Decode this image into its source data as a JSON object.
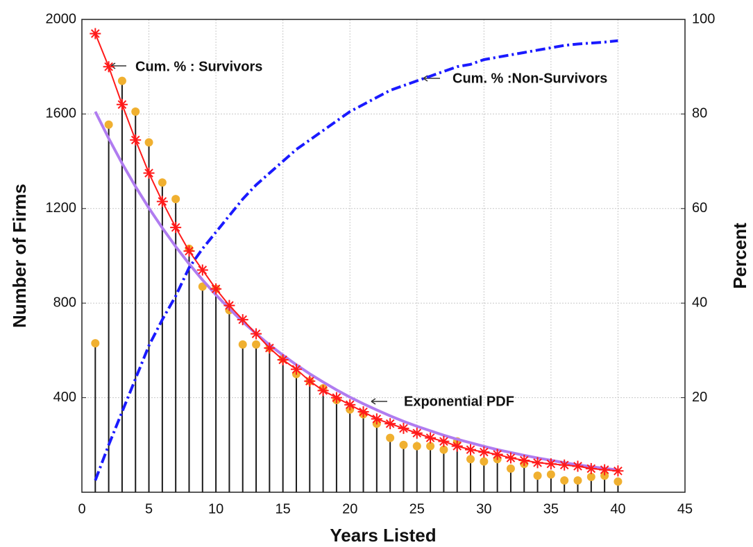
{
  "chart_data": {
    "type": "combo",
    "x": [
      1,
      2,
      3,
      4,
      5,
      6,
      7,
      8,
      9,
      10,
      11,
      12,
      13,
      14,
      15,
      16,
      17,
      18,
      19,
      20,
      21,
      22,
      23,
      24,
      25,
      26,
      27,
      28,
      29,
      30,
      31,
      32,
      33,
      34,
      35,
      36,
      37,
      38,
      39,
      40
    ],
    "xlabel": "Years Listed",
    "ylabel": "Number of Firms",
    "y2label": "Percent",
    "xlim": [
      0,
      45
    ],
    "xticks": [
      0,
      5,
      10,
      15,
      20,
      25,
      30,
      35,
      40,
      45
    ],
    "ylim": [
      0,
      2000
    ],
    "yticks": [
      400,
      800,
      1200,
      1600,
      2000
    ],
    "y2lim": [
      0,
      100
    ],
    "y2ticks": [
      20,
      40,
      60,
      80,
      100
    ],
    "grid": true,
    "series": [
      {
        "type": "stem",
        "color": "#1a1a1a",
        "marker_color": "#f0b030",
        "values": [
          630,
          1555,
          1740,
          1610,
          1480,
          1310,
          1240,
          1030,
          870,
          860,
          770,
          625,
          625,
          610,
          565,
          500,
          470,
          440,
          390,
          350,
          330,
          290,
          230,
          200,
          195,
          195,
          180,
          215,
          140,
          130,
          140,
          100,
          120,
          70,
          75,
          50,
          50,
          65,
          70,
          45
        ]
      },
      {
        "type": "line",
        "color": "#b07cf0",
        "width": 4,
        "values": [
          1610,
          1497,
          1391,
          1293,
          1202,
          1118,
          1039,
          966,
          898,
          835,
          776,
          721,
          671,
          623,
          580,
          539,
          501,
          466,
          433,
          402,
          374,
          348,
          323,
          300,
          279,
          260,
          241,
          224,
          209,
          194,
          180,
          168,
          156,
          145,
          135,
          125,
          116,
          108,
          101,
          94
        ]
      },
      {
        "type": "line",
        "color": "#ff1a1a",
        "width": 2,
        "marker": "asterisk",
        "axis": "y2",
        "values": [
          97,
          90,
          82,
          74.5,
          67.5,
          61.5,
          56,
          51,
          47,
          43,
          39.5,
          36.5,
          33.5,
          30.5,
          28,
          26,
          23.5,
          21.5,
          20,
          18.5,
          17,
          15.5,
          14.5,
          13.5,
          12.5,
          11.5,
          10.75,
          9.75,
          9,
          8.5,
          8,
          7.25,
          6.75,
          6.25,
          6,
          5.75,
          5.5,
          5,
          4.75,
          4.5
        ]
      },
      {
        "type": "line",
        "color": "#1a1aff",
        "width": 4,
        "dash": true,
        "axis": "y2",
        "values": [
          2.5,
          10,
          17,
          24,
          31,
          36.5,
          41.5,
          47.5,
          51.5,
          55,
          58.5,
          62,
          65,
          67.5,
          70,
          72.5,
          74.5,
          76.5,
          78.5,
          80.5,
          82,
          83.5,
          85,
          86,
          87,
          88,
          89,
          90,
          90.5,
          91.5,
          92,
          92.5,
          93,
          93.5,
          94,
          94.5,
          94.8,
          95,
          95.2,
          95.5
        ]
      }
    ],
    "annotations": [
      "Cum. % : Survivors",
      "Cum. % :Non-Survivors",
      "Exponential PDF"
    ]
  }
}
